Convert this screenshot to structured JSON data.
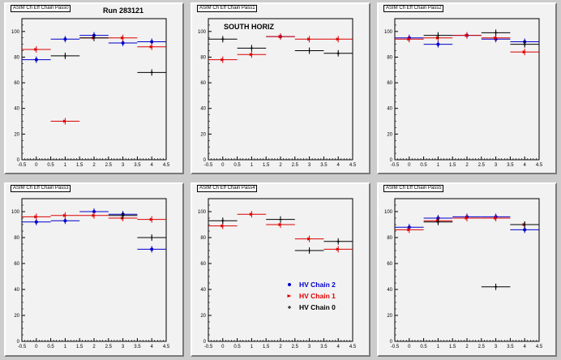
{
  "chart_data": [
    {
      "type": "scatter",
      "statbox": "ASIM Ch Eff Chain Pass0",
      "title": "Run 283121",
      "xlim": [
        -0.5,
        4.5
      ],
      "ylim": [
        0,
        110
      ],
      "xticks": [
        "-0.5",
        "0",
        "0.5",
        "1",
        "1.5",
        "2",
        "2.5",
        "3",
        "3.5",
        "4",
        "4.5"
      ],
      "yticks": [
        "0",
        "20",
        "40",
        "60",
        "80",
        "100"
      ],
      "series": [
        {
          "color": "#0000cc",
          "marker": "circle",
          "points": [
            {
              "x": 0,
              "y": 78
            },
            {
              "x": 1,
              "y": 94
            },
            {
              "x": 2,
              "y": 97
            },
            {
              "x": 3,
              "y": 91
            },
            {
              "x": 4,
              "y": 92
            }
          ]
        },
        {
          "color": "#dd0000",
          "marker": "triangle",
          "points": [
            {
              "x": 0,
              "y": 86
            },
            {
              "x": 1,
              "y": 30
            },
            {
              "x": 2,
              "y": 95
            },
            {
              "x": 3,
              "y": 95
            },
            {
              "x": 4,
              "y": 88
            }
          ]
        },
        {
          "color": "#000000",
          "marker": "cross",
          "points": [
            {
              "x": 1,
              "y": 81
            },
            {
              "x": 2,
              "y": 95
            },
            {
              "x": 4,
              "y": 68
            }
          ]
        }
      ]
    },
    {
      "type": "scatter",
      "statbox": "ASIM Ch Eff Chain Pass1",
      "title": "SOUTH HORIZ",
      "xlim": [
        -0.5,
        4.5
      ],
      "ylim": [
        0,
        110
      ],
      "xticks": [
        "-0.5",
        "0",
        "0.5",
        "1",
        "1.5",
        "2",
        "2.5",
        "3",
        "3.5",
        "4",
        "4.5"
      ],
      "yticks": [
        "0",
        "20",
        "40",
        "60",
        "80",
        "100"
      ],
      "series": [
        {
          "color": "#0000cc",
          "marker": "circle",
          "points": [
            {
              "x": 2,
              "y": 96
            }
          ]
        },
        {
          "color": "#dd0000",
          "marker": "triangle",
          "points": [
            {
              "x": 0,
              "y": 78
            },
            {
              "x": 1,
              "y": 82
            },
            {
              "x": 2,
              "y": 96
            },
            {
              "x": 3,
              "y": 94
            },
            {
              "x": 4,
              "y": 94
            }
          ]
        },
        {
          "color": "#000000",
          "marker": "cross",
          "points": [
            {
              "x": 0,
              "y": 94
            },
            {
              "x": 1,
              "y": 87
            },
            {
              "x": 3,
              "y": 85
            },
            {
              "x": 4,
              "y": 83
            }
          ]
        }
      ]
    },
    {
      "type": "scatter",
      "statbox": "ASIM Ch Eff Chain Pass2",
      "title": "",
      "xlim": [
        -0.5,
        4.5
      ],
      "ylim": [
        0,
        110
      ],
      "xticks": [
        "-0.5",
        "0",
        "0.5",
        "1",
        "1.5",
        "2",
        "2.5",
        "3",
        "3.5",
        "4",
        "4.5"
      ],
      "yticks": [
        "0",
        "20",
        "40",
        "60",
        "80",
        "100"
      ],
      "series": [
        {
          "color": "#0000cc",
          "marker": "circle",
          "points": [
            {
              "x": 0,
              "y": 95
            },
            {
              "x": 1,
              "y": 90
            },
            {
              "x": 2,
              "y": 97
            },
            {
              "x": 3,
              "y": 94
            },
            {
              "x": 4,
              "y": 92
            }
          ]
        },
        {
          "color": "#dd0000",
          "marker": "triangle",
          "points": [
            {
              "x": 0,
              "y": 94
            },
            {
              "x": 1,
              "y": 95
            },
            {
              "x": 2,
              "y": 97
            },
            {
              "x": 3,
              "y": 95
            },
            {
              "x": 4,
              "y": 84
            }
          ]
        },
        {
          "color": "#000000",
          "marker": "cross",
          "points": [
            {
              "x": 1,
              "y": 97
            },
            {
              "x": 3,
              "y": 99
            },
            {
              "x": 4,
              "y": 90
            }
          ]
        }
      ]
    },
    {
      "type": "scatter",
      "statbox": "ASIM Ch Eff Chain Pass3",
      "title": "",
      "xlim": [
        -0.5,
        4.5
      ],
      "ylim": [
        0,
        110
      ],
      "xticks": [
        "-0.5",
        "0",
        "0.5",
        "1",
        "1.5",
        "2",
        "2.5",
        "3",
        "3.5",
        "4",
        "4.5"
      ],
      "yticks": [
        "0",
        "20",
        "40",
        "60",
        "80",
        "100"
      ],
      "series": [
        {
          "color": "#0000cc",
          "marker": "circle",
          "points": [
            {
              "x": 0,
              "y": 92
            },
            {
              "x": 1,
              "y": 93
            },
            {
              "x": 2,
              "y": 100
            },
            {
              "x": 3,
              "y": 98
            },
            {
              "x": 4,
              "y": 71
            }
          ]
        },
        {
          "color": "#dd0000",
          "marker": "triangle",
          "points": [
            {
              "x": 0,
              "y": 96
            },
            {
              "x": 1,
              "y": 97
            },
            {
              "x": 2,
              "y": 97
            },
            {
              "x": 3,
              "y": 95
            },
            {
              "x": 4,
              "y": 94
            }
          ]
        },
        {
          "color": "#000000",
          "marker": "cross",
          "points": [
            {
              "x": 3,
              "y": 97
            },
            {
              "x": 4,
              "y": 80
            }
          ]
        }
      ]
    },
    {
      "type": "scatter",
      "statbox": "ASIM Ch Eff Chain Pass4",
      "title": "",
      "xlim": [
        -0.5,
        4.5
      ],
      "ylim": [
        0,
        110
      ],
      "xticks": [
        "-0.5",
        "0",
        "0.5",
        "1",
        "1.5",
        "2",
        "2.5",
        "3",
        "3.5",
        "4",
        "4.5"
      ],
      "yticks": [
        "0",
        "20",
        "40",
        "60",
        "80",
        "100"
      ],
      "legend": {
        "position": "bottom-right",
        "entries": [
          {
            "label": "HV Chain 2",
            "color": "#0000cc",
            "marker": "circle"
          },
          {
            "label": "HV Chain 1",
            "color": "#dd0000",
            "marker": "triangle"
          },
          {
            "label": "HV Chain 0",
            "color": "#000000",
            "marker": "cross"
          }
        ]
      },
      "series": [
        {
          "color": "#dd0000",
          "marker": "triangle",
          "points": [
            {
              "x": 0,
              "y": 89
            },
            {
              "x": 1,
              "y": 98
            },
            {
              "x": 2,
              "y": 90
            },
            {
              "x": 3,
              "y": 79
            },
            {
              "x": 4,
              "y": 71
            }
          ]
        },
        {
          "color": "#000000",
          "marker": "cross",
          "points": [
            {
              "x": 0,
              "y": 93
            },
            {
              "x": 2,
              "y": 94
            },
            {
              "x": 3,
              "y": 70
            },
            {
              "x": 4,
              "y": 77
            }
          ]
        }
      ]
    },
    {
      "type": "scatter",
      "statbox": "ASIM Ch Eff Chain Pass5",
      "title": "",
      "xlim": [
        -0.5,
        4.5
      ],
      "ylim": [
        0,
        110
      ],
      "xticks": [
        "-0.5",
        "0",
        "0.5",
        "1",
        "1.5",
        "2",
        "2.5",
        "3",
        "3.5",
        "4",
        "4.5"
      ],
      "yticks": [
        "0",
        "20",
        "40",
        "60",
        "80",
        "100"
      ],
      "series": [
        {
          "color": "#0000cc",
          "marker": "circle",
          "points": [
            {
              "x": 0,
              "y": 88
            },
            {
              "x": 1,
              "y": 95
            },
            {
              "x": 2,
              "y": 96
            },
            {
              "x": 3,
              "y": 96
            },
            {
              "x": 4,
              "y": 86
            }
          ]
        },
        {
          "color": "#dd0000",
          "marker": "triangle",
          "points": [
            {
              "x": 0,
              "y": 86
            },
            {
              "x": 1,
              "y": 93
            },
            {
              "x": 2,
              "y": 95
            },
            {
              "x": 3,
              "y": 95
            },
            {
              "x": 4,
              "y": 90
            }
          ]
        },
        {
          "color": "#000000",
          "marker": "cross",
          "points": [
            {
              "x": 1,
              "y": 92
            },
            {
              "x": 3,
              "y": 42
            },
            {
              "x": 4,
              "y": 90
            }
          ]
        }
      ]
    }
  ]
}
